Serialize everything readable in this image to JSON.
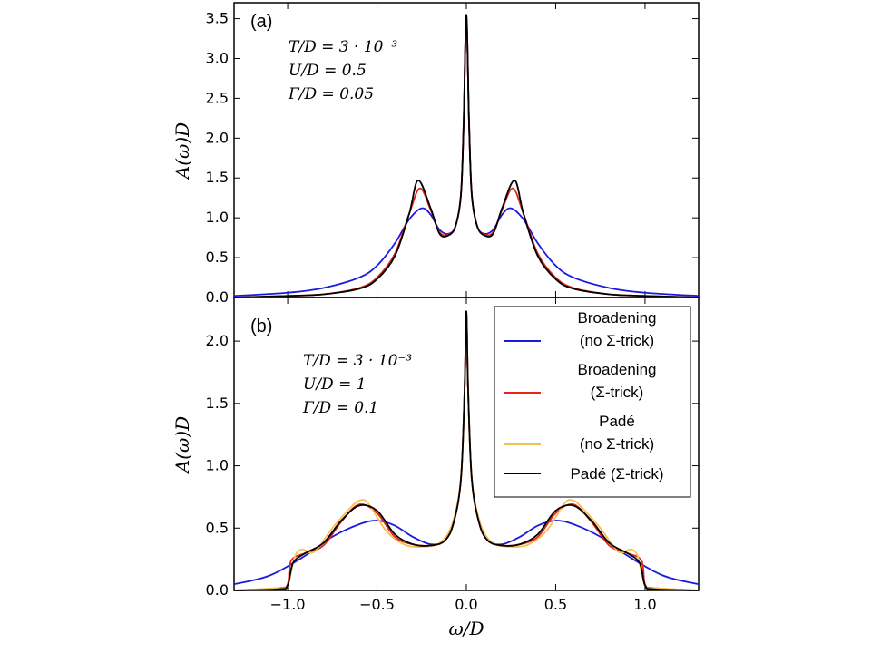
{
  "chart_data": [
    {
      "type": "line",
      "panel_label": "(a)",
      "annotations": [
        "T/D = 3 · 10⁻³",
        "U/D = 0.5",
        "Γ/D = 0.05"
      ],
      "xlabel": "",
      "ylabel": "A(ω)D",
      "xlim": [
        -1.3,
        1.3
      ],
      "ylim": [
        0,
        3.7
      ],
      "yticks": [
        "0.0",
        "0.5",
        "1.0",
        "1.5",
        "2.0",
        "2.5",
        "3.0",
        "3.5"
      ],
      "ytick_values": [
        0,
        0.5,
        1.0,
        1.5,
        2.0,
        2.5,
        3.0,
        3.5
      ],
      "legend": "none",
      "series": [
        {
          "color": "#1a1adc",
          "x": [
            -1.3,
            -1.0,
            -0.8,
            -0.6,
            -0.5,
            -0.4,
            -0.32,
            -0.25,
            -0.2,
            -0.15,
            -0.1,
            -0.06,
            -0.03,
            -0.015,
            0.0,
            0.015,
            0.03,
            0.06,
            0.1,
            0.15,
            0.2,
            0.25,
            0.32,
            0.4,
            0.5,
            0.6,
            0.8,
            1.0,
            1.3
          ],
          "y": [
            0.02,
            0.06,
            0.12,
            0.25,
            0.4,
            0.68,
            0.98,
            1.12,
            1.04,
            0.85,
            0.8,
            0.9,
            1.3,
            2.2,
            3.52,
            2.2,
            1.3,
            0.9,
            0.8,
            0.85,
            1.04,
            1.12,
            0.98,
            0.68,
            0.4,
            0.25,
            0.12,
            0.06,
            0.02
          ]
        },
        {
          "color": "#e8251a",
          "x": [
            -1.3,
            -1.0,
            -0.8,
            -0.6,
            -0.5,
            -0.4,
            -0.32,
            -0.26,
            -0.2,
            -0.15,
            -0.1,
            -0.06,
            -0.03,
            -0.015,
            0.0,
            0.015,
            0.03,
            0.06,
            0.1,
            0.15,
            0.2,
            0.26,
            0.32,
            0.4,
            0.5,
            0.6,
            0.8,
            1.0,
            1.3
          ],
          "y": [
            0.0,
            0.02,
            0.04,
            0.12,
            0.25,
            0.55,
            1.05,
            1.37,
            1.1,
            0.82,
            0.79,
            0.9,
            1.3,
            2.2,
            3.52,
            2.2,
            1.3,
            0.9,
            0.79,
            0.82,
            1.1,
            1.37,
            1.05,
            0.55,
            0.25,
            0.12,
            0.04,
            0.02,
            0.0
          ]
        },
        {
          "color": "#000000",
          "x": [
            -1.3,
            -1.0,
            -0.8,
            -0.6,
            -0.5,
            -0.4,
            -0.32,
            -0.27,
            -0.2,
            -0.15,
            -0.1,
            -0.06,
            -0.03,
            -0.015,
            0.0,
            0.015,
            0.03,
            0.06,
            0.1,
            0.15,
            0.2,
            0.27,
            0.32,
            0.4,
            0.5,
            0.6,
            0.8,
            1.0,
            1.3
          ],
          "y": [
            0.0,
            0.02,
            0.04,
            0.11,
            0.23,
            0.52,
            1.05,
            1.47,
            1.12,
            0.8,
            0.78,
            0.9,
            1.3,
            2.2,
            3.55,
            2.2,
            1.3,
            0.9,
            0.78,
            0.8,
            1.12,
            1.47,
            1.05,
            0.52,
            0.23,
            0.11,
            0.04,
            0.02,
            0.0
          ]
        }
      ]
    },
    {
      "type": "line",
      "panel_label": "(b)",
      "annotations": [
        "T/D = 3 · 10⁻³",
        "U/D = 1",
        "Γ/D = 0.1"
      ],
      "xlabel": "ω/D",
      "ylabel": "A(ω)D",
      "xlim": [
        -1.3,
        1.3
      ],
      "ylim": [
        0,
        2.35
      ],
      "xticks": [
        "−1.0",
        "−0.5",
        "0.0",
        "0.5",
        "1.0"
      ],
      "xtick_values": [
        -1.0,
        -0.5,
        0.0,
        0.5,
        1.0
      ],
      "yticks": [
        "0.0",
        "0.5",
        "1.0",
        "1.5",
        "2.0"
      ],
      "ytick_values": [
        0,
        0.5,
        1.0,
        1.5,
        2.0
      ],
      "legend": "top-right",
      "series": [
        {
          "name": "Broadening (no Σ-trick)",
          "legend_lines": [
            "Broadening",
            "(no Σ-trick)"
          ],
          "color": "#1a1adc",
          "x": [
            -1.3,
            -1.1,
            -0.9,
            -0.75,
            -0.6,
            -0.5,
            -0.4,
            -0.3,
            -0.2,
            -0.12,
            -0.07,
            -0.03,
            -0.01,
            0.0,
            0.01,
            0.03,
            0.07,
            0.12,
            0.2,
            0.3,
            0.4,
            0.5,
            0.6,
            0.75,
            0.9,
            1.1,
            1.3
          ],
          "y": [
            0.05,
            0.12,
            0.28,
            0.43,
            0.53,
            0.56,
            0.52,
            0.43,
            0.37,
            0.4,
            0.55,
            0.9,
            1.6,
            2.22,
            1.6,
            0.9,
            0.55,
            0.4,
            0.37,
            0.43,
            0.52,
            0.56,
            0.53,
            0.43,
            0.28,
            0.12,
            0.05
          ]
        },
        {
          "name": "Broadening (Σ-trick)",
          "legend_lines": [
            "Broadening",
            "(Σ-trick)"
          ],
          "color": "#e8251a",
          "x": [
            -1.3,
            -1.05,
            -1.0,
            -0.98,
            -0.9,
            -0.8,
            -0.7,
            -0.6,
            -0.5,
            -0.4,
            -0.3,
            -0.2,
            -0.12,
            -0.07,
            -0.03,
            -0.01,
            0.0,
            0.01,
            0.03,
            0.07,
            0.12,
            0.2,
            0.3,
            0.4,
            0.5,
            0.6,
            0.7,
            0.8,
            0.9,
            0.98,
            1.0,
            1.05,
            1.3
          ],
          "y": [
            0.0,
            0.02,
            0.05,
            0.24,
            0.3,
            0.36,
            0.55,
            0.69,
            0.62,
            0.43,
            0.37,
            0.36,
            0.4,
            0.55,
            0.9,
            1.6,
            2.22,
            1.6,
            0.9,
            0.55,
            0.4,
            0.36,
            0.37,
            0.43,
            0.62,
            0.69,
            0.55,
            0.36,
            0.3,
            0.24,
            0.05,
            0.02,
            0.0
          ]
        },
        {
          "name": "Padé (no Σ-trick)",
          "legend_lines": [
            "Padé",
            "(no Σ-trick)"
          ],
          "color": "#f5c050",
          "x": [
            -1.3,
            -1.05,
            -1.0,
            -0.96,
            -0.92,
            -0.85,
            -0.75,
            -0.65,
            -0.6,
            -0.55,
            -0.45,
            -0.35,
            -0.25,
            -0.15,
            -0.08,
            -0.03,
            -0.01,
            0.0,
            0.01,
            0.03,
            0.08,
            0.15,
            0.25,
            0.35,
            0.45,
            0.55,
            0.6,
            0.65,
            0.75,
            0.85,
            0.92,
            0.96,
            1.0,
            1.05,
            1.3
          ],
          "y": [
            0.0,
            0.02,
            0.04,
            0.27,
            0.33,
            0.31,
            0.5,
            0.66,
            0.72,
            0.7,
            0.48,
            0.37,
            0.35,
            0.38,
            0.53,
            0.9,
            1.6,
            2.22,
            1.6,
            0.9,
            0.53,
            0.38,
            0.35,
            0.37,
            0.48,
            0.7,
            0.72,
            0.66,
            0.5,
            0.31,
            0.33,
            0.27,
            0.04,
            0.02,
            0.0
          ]
        },
        {
          "name": "Padé (Σ-trick)",
          "legend_lines": [
            "Padé (Σ-trick)"
          ],
          "color": "#000000",
          "x": [
            -1.3,
            -1.05,
            -1.0,
            -0.97,
            -0.9,
            -0.8,
            -0.7,
            -0.6,
            -0.5,
            -0.4,
            -0.3,
            -0.2,
            -0.12,
            -0.07,
            -0.03,
            -0.01,
            0.0,
            0.01,
            0.03,
            0.07,
            0.12,
            0.2,
            0.3,
            0.4,
            0.5,
            0.6,
            0.7,
            0.8,
            0.9,
            0.97,
            1.0,
            1.05,
            1.3
          ],
          "y": [
            0.0,
            0.01,
            0.04,
            0.22,
            0.3,
            0.38,
            0.56,
            0.68,
            0.64,
            0.45,
            0.37,
            0.36,
            0.4,
            0.55,
            0.9,
            1.6,
            2.24,
            1.6,
            0.9,
            0.55,
            0.4,
            0.36,
            0.37,
            0.45,
            0.64,
            0.68,
            0.56,
            0.38,
            0.3,
            0.22,
            0.04,
            0.01,
            0.0
          ]
        }
      ]
    }
  ]
}
